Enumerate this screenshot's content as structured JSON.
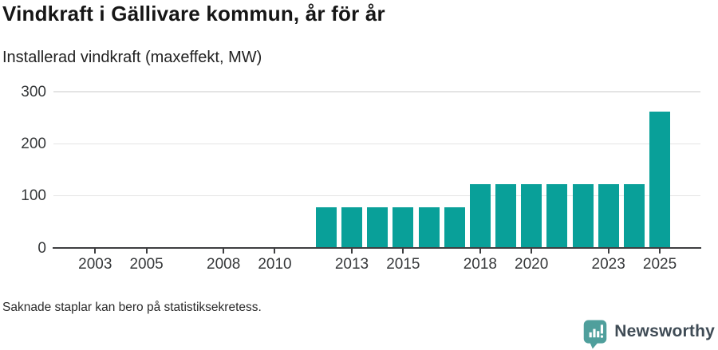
{
  "header": {
    "title": "Vindkraft i Gällivare kommun, år för år",
    "subtitle": "Installerad vindkraft (maxeffekt, MW)"
  },
  "footer": {
    "note": "Saknade staplar kan bero på statistiksekretess.",
    "brand_name": "Newsworthy",
    "brand_icon": "newsworthy-speech-bubble-barchart-icon"
  },
  "colors": {
    "bar": "#09a099",
    "axis": "#3e3f41",
    "grid": "#e4e4e4",
    "tick_label": "#37393b",
    "brand_teal": "#4f9f9c",
    "brand_text": "#3f4b55"
  },
  "chart_data": {
    "type": "bar",
    "title": "Vindkraft i Gällivare kommun, år för år",
    "ylabel": "Installerad vindkraft (maxeffekt, MW)",
    "xlabel": "",
    "categories": [
      2002,
      2003,
      2004,
      2005,
      2006,
      2007,
      2008,
      2009,
      2010,
      2011,
      2012,
      2013,
      2014,
      2015,
      2016,
      2017,
      2018,
      2019,
      2020,
      2021,
      2022,
      2023,
      2024,
      2025
    ],
    "values": [
      null,
      null,
      null,
      null,
      null,
      null,
      null,
      null,
      null,
      null,
      78,
      78,
      78,
      78,
      78,
      78,
      122,
      122,
      122,
      122,
      122,
      122,
      122,
      262
    ],
    "missing_values_meaning": "Saknade staplar kan bero på statistiksekretess.",
    "xticks": [
      2003,
      2005,
      2008,
      2010,
      2013,
      2015,
      2018,
      2020,
      2023,
      2025
    ],
    "yticks": [
      0,
      100,
      200,
      300
    ],
    "ylim": [
      0,
      300
    ],
    "grid": "horizontal-only",
    "legend": "none",
    "bar_color": "#09a099"
  }
}
